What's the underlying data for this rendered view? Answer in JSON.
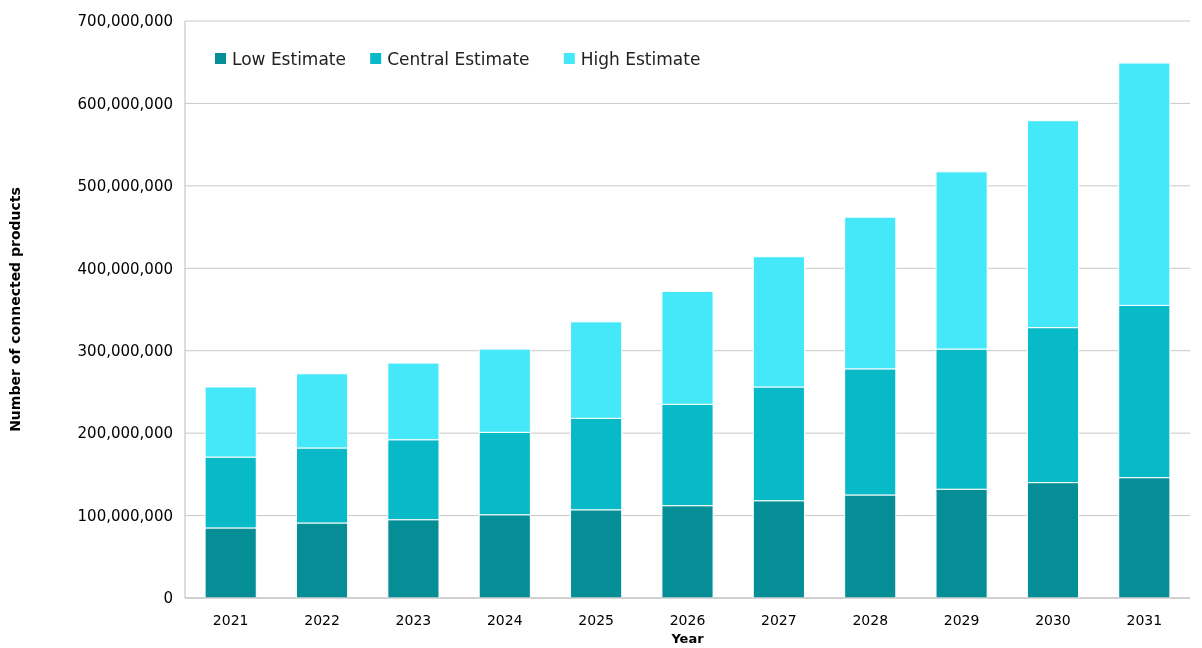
{
  "chart_data": {
    "type": "bar",
    "stacked": true,
    "xlabel": "Year",
    "ylabel": "Number of connected products",
    "categories": [
      "2021",
      "2022",
      "2023",
      "2024",
      "2025",
      "2026",
      "2027",
      "2028",
      "2029",
      "2030",
      "2031"
    ],
    "series": [
      {
        "name": "Low Estimate",
        "color": "#058e96",
        "values": [
          85000000,
          91000000,
          95000000,
          101000000,
          107000000,
          112000000,
          118000000,
          125000000,
          132000000,
          140000000,
          146000000
        ]
      },
      {
        "name": "Central Estimate",
        "color": "#08b9c8",
        "values": [
          86000000,
          91000000,
          97000000,
          100000000,
          111000000,
          123000000,
          138000000,
          153000000,
          170000000,
          188000000,
          209000000
        ]
      },
      {
        "name": "High Estimate",
        "color": "#45e8f9",
        "values": [
          85000000,
          90000000,
          93000000,
          101000000,
          117000000,
          137000000,
          158000000,
          184000000,
          215000000,
          251000000,
          294000000
        ]
      }
    ],
    "ylim": [
      0,
      700000000
    ],
    "yticks": [
      {
        "value": 0,
        "label": "0"
      },
      {
        "value": 100000000,
        "label": "100,000,000"
      },
      {
        "value": 200000000,
        "label": "200,000,000"
      },
      {
        "value": 300000000,
        "label": "300,000,000"
      },
      {
        "value": 400000000,
        "label": "400,000,000"
      },
      {
        "value": 500000000,
        "label": "500,000,000"
      },
      {
        "value": 600000000,
        "label": "600,000,000"
      },
      {
        "value": 700000000,
        "label": "700,000,000"
      }
    ],
    "grid": "y",
    "legend": "top left"
  }
}
